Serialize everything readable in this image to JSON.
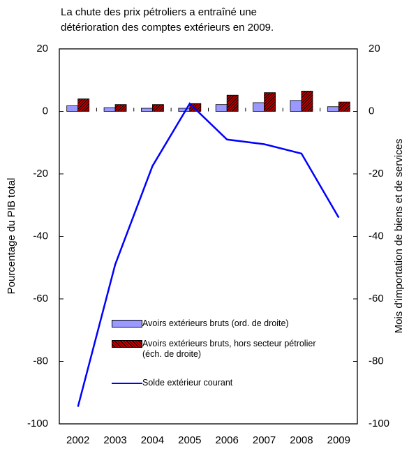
{
  "chart_data": {
    "type": "bar-line",
    "title": [
      "La chute des prix pétroliers a entraîné une",
      "détérioration des comptes extérieurs en  2009."
    ],
    "ylabel": "Pourcentage du PIB total",
    "y2label": "Mois d'importation de biens et de services",
    "categories": [
      "2002",
      "2003",
      "2004",
      "2005",
      "2006",
      "2007",
      "2008",
      "2009"
    ],
    "series": [
      {
        "name": "Avoirs extérieurs bruts (ord. de droite)",
        "type": "bar",
        "axis": "y2",
        "color": "#9999ff",
        "values": [
          1.8,
          1.2,
          1.0,
          1.0,
          2.2,
          2.8,
          3.5,
          1.5
        ]
      },
      {
        "name": "Avoirs extérieurs bruts, hors secteur pétrolier (éch. de droite)",
        "type": "bar",
        "axis": "y2",
        "color": "#cc0000",
        "hatch": true,
        "values": [
          4.0,
          2.2,
          2.2,
          2.5,
          5.2,
          6.0,
          6.5,
          3.0
        ]
      },
      {
        "name": "Solde extérieur courant",
        "type": "line",
        "color": "#0000ff",
        "values": [
          -94.5,
          -49,
          -17.5,
          2.5,
          -9,
          -10.5,
          -13.5,
          -34
        ]
      }
    ],
    "ylim": [
      -100,
      20
    ],
    "yticks": [
      -100,
      -80,
      -60,
      -40,
      -20,
      0,
      20
    ],
    "y2lim": [
      -100,
      20
    ],
    "y2ticks": [
      -100,
      -80,
      -60,
      -40,
      -20,
      0,
      20
    ]
  }
}
